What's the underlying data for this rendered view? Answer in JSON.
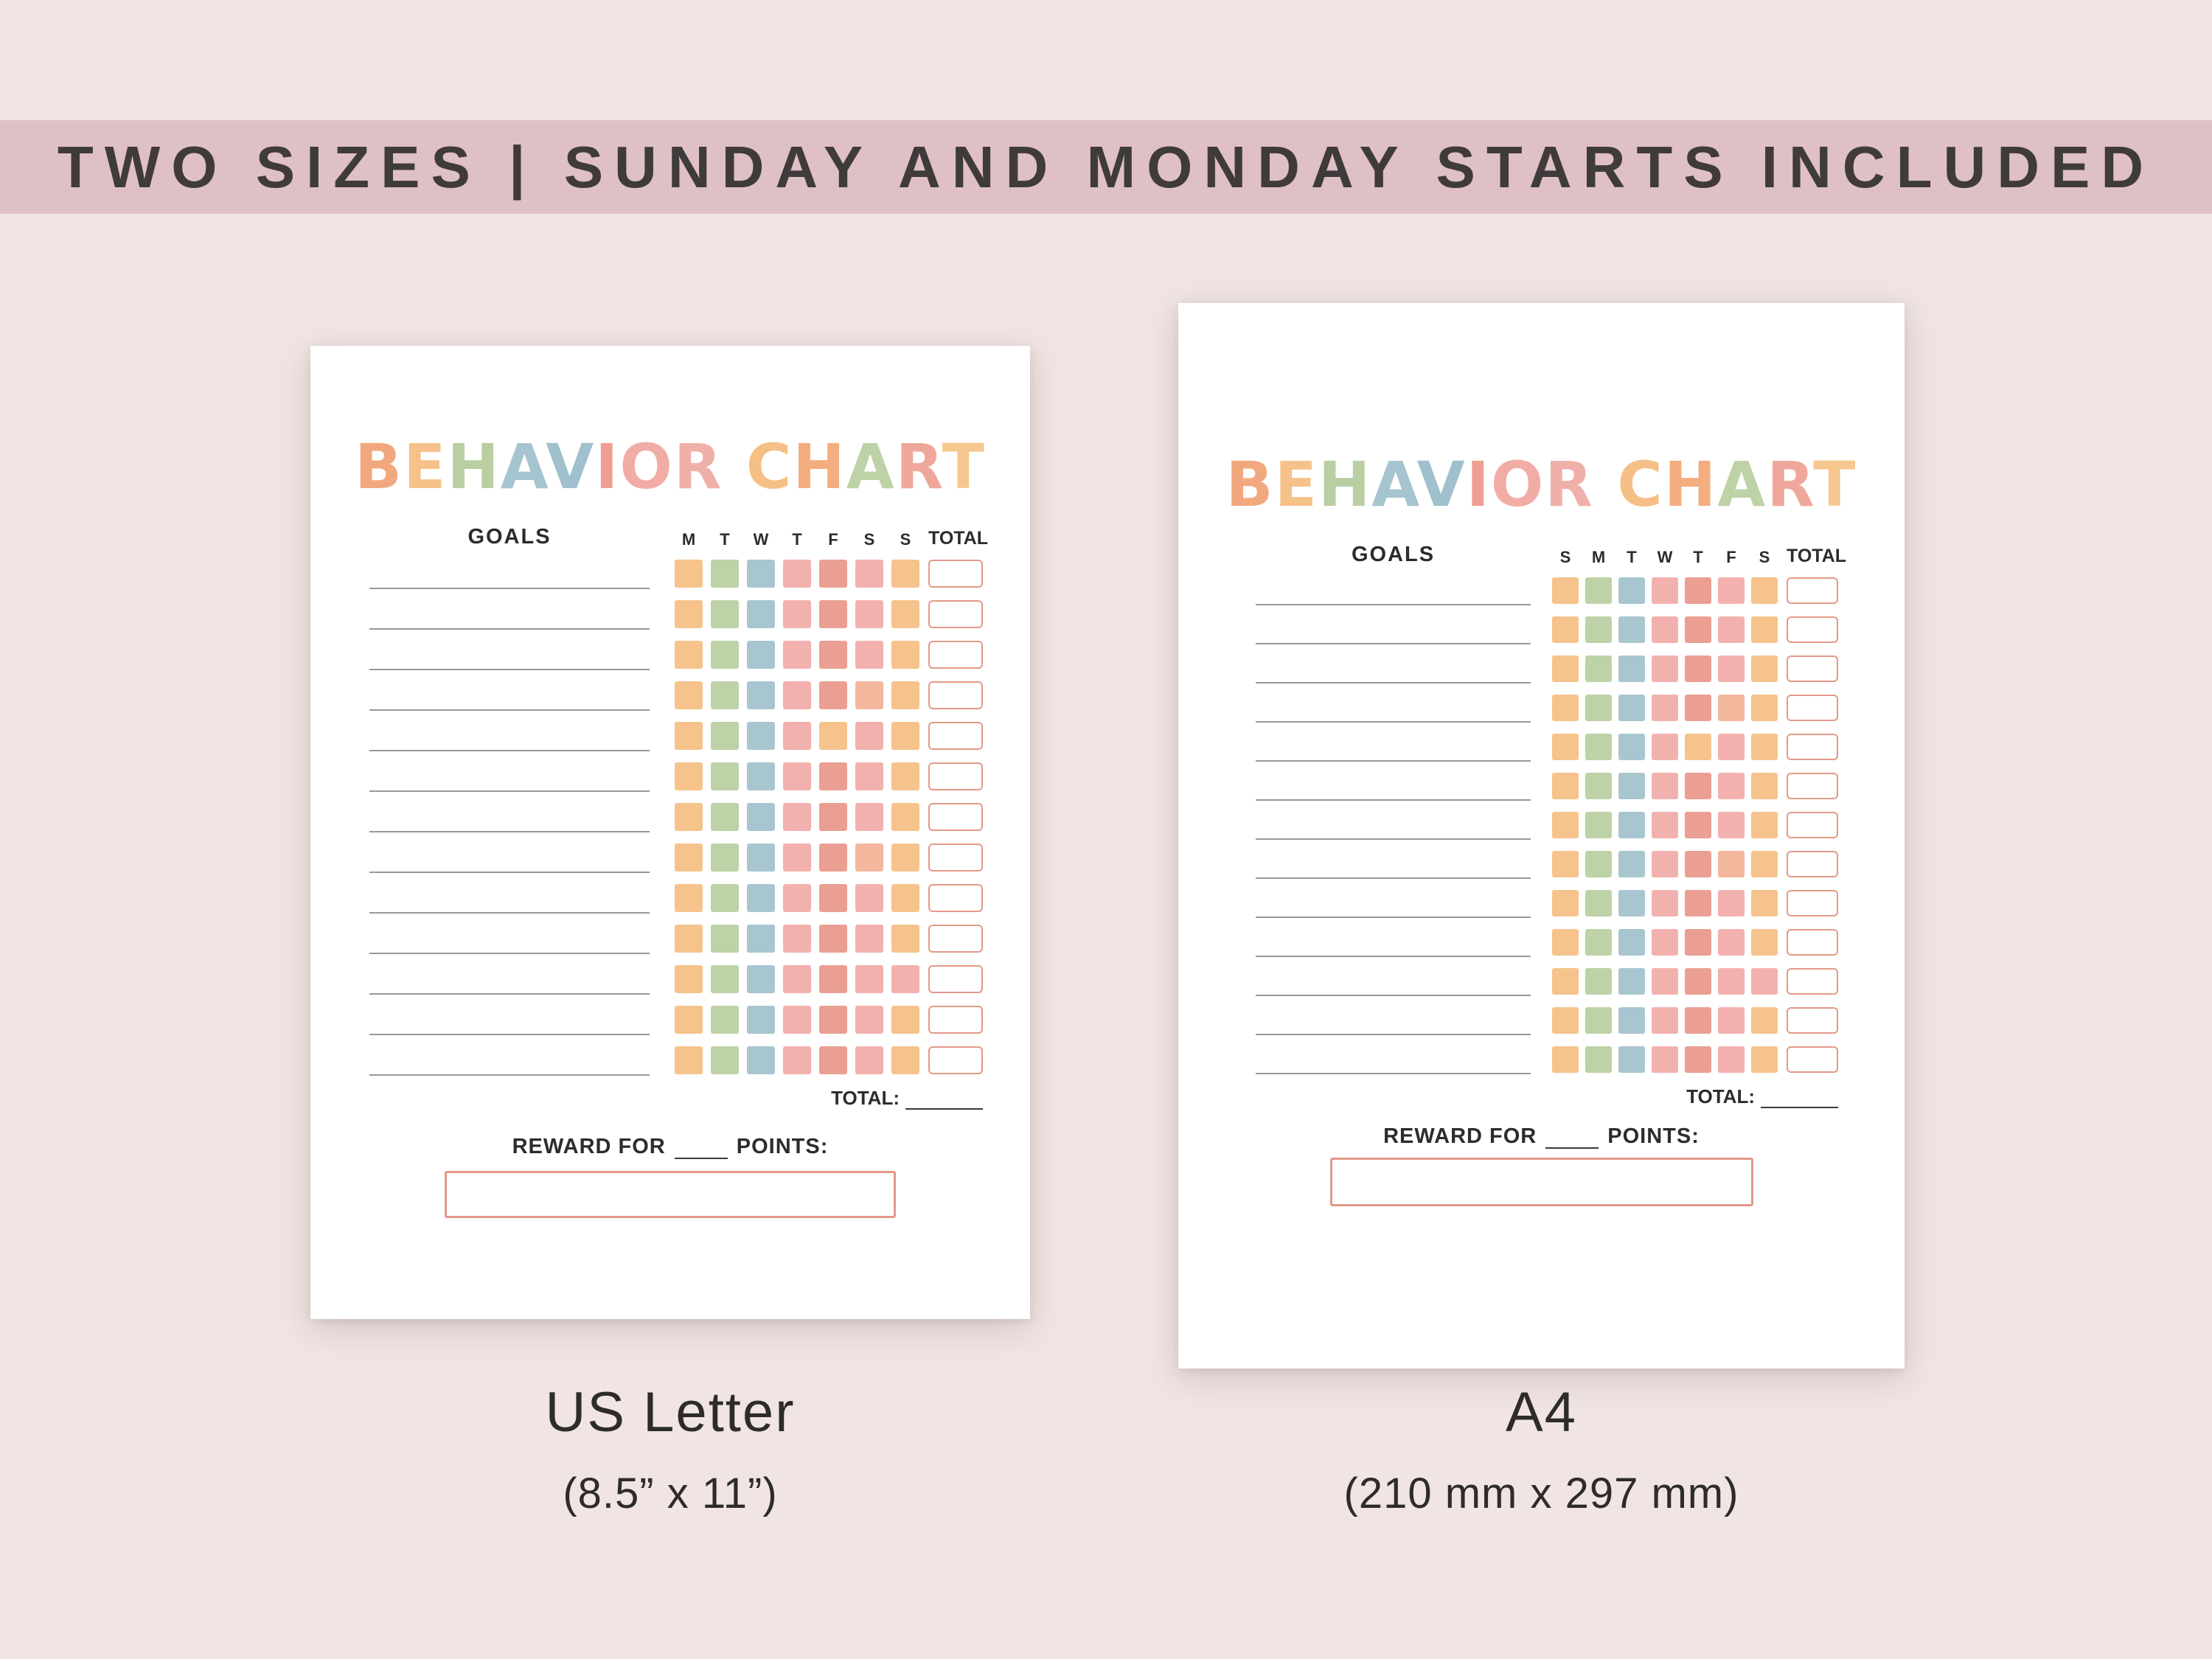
{
  "banner": {
    "text": "TWO SIZES | SUNDAY AND MONDAY STARTS INCLUDED"
  },
  "colors": {
    "background": "#f0e5e3",
    "banner_bg": "#dfc0c6",
    "accent_salmon": "#e39988",
    "text_dark": "#2d2b2b",
    "goal_line": "#9b9794"
  },
  "title_letters": [
    {
      "ch": "B",
      "color": "#f2a87f"
    },
    {
      "ch": "E",
      "color": "#f6c28a"
    },
    {
      "ch": "H",
      "color": "#b9cfa2"
    },
    {
      "ch": "A",
      "color": "#a6c4cf"
    },
    {
      "ch": "V",
      "color": "#9fc0cc"
    },
    {
      "ch": "I",
      "color": "#ef9e91"
    },
    {
      "ch": "O",
      "color": "#f2aca6"
    },
    {
      "ch": "R",
      "color": "#f0b0aa"
    },
    {
      "ch": " ",
      "color": ""
    },
    {
      "ch": "C",
      "color": "#f6bf85"
    },
    {
      "ch": "H",
      "color": "#f3ad7e"
    },
    {
      "ch": "A",
      "color": "#bdd2a6"
    },
    {
      "ch": "R",
      "color": "#f0a79b"
    },
    {
      "ch": "T",
      "color": "#f6c78e"
    }
  ],
  "grid": {
    "palette": [
      "#f5c38b",
      "#bdd2a6",
      "#a8c6d0",
      "#f2b1ae",
      "#ea9f92",
      "#f3b79e"
    ],
    "rows": [
      "0123430",
      "0123430",
      "0123430",
      "0123450",
      "0123030",
      "0123430",
      "0123430",
      "0123450",
      "0123430",
      "0123430",
      "0123433",
      "0123430",
      "0123430"
    ]
  },
  "charts": [
    {
      "name": "US Letter behavior chart (Monday start)",
      "title_text": "BEHAVIOR CHART",
      "goals_label": "GOALS",
      "day_headers": [
        "M",
        "T",
        "W",
        "T",
        "F",
        "S",
        "S"
      ],
      "total_header": "TOTAL",
      "total_label": "TOTAL:",
      "reward_label_before": "REWARD FOR",
      "reward_label_after": "POINTS:",
      "caption": "US Letter",
      "caption_sub": "(8.5” x 11”)"
    },
    {
      "name": "A4 behavior chart (Sunday start)",
      "title_text": "BEHAVIOR CHART",
      "goals_label": "GOALS",
      "day_headers": [
        "S",
        "M",
        "T",
        "W",
        "T",
        "F",
        "S"
      ],
      "total_header": "TOTAL",
      "total_label": "TOTAL:",
      "reward_label_before": "REWARD FOR",
      "reward_label_after": "POINTS:",
      "caption": "A4",
      "caption_sub": "(210 mm x 297 mm)"
    }
  ]
}
